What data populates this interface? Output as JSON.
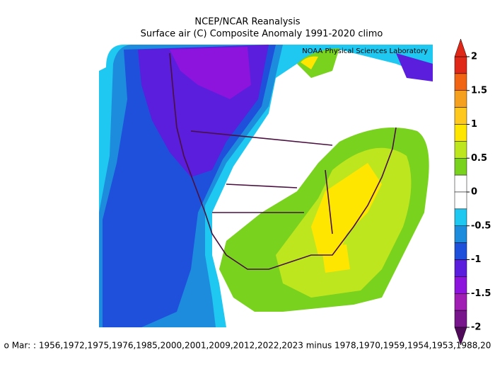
{
  "header": {
    "title": "NCEP/NCAR Reanalysis",
    "subtitle": "Surface air (C) Composite Anomaly 1991-2020 climo",
    "credit": "NOAA Physical Sciences Laboratory"
  },
  "footer": {
    "text": "o Mar: : 1956,1972,1975,1976,1985,2000,2001,2009,2012,2022,2023 minus 1978,1970,1959,1954,1953,1988,20"
  },
  "colorbar": {
    "ticks": [
      2,
      1.5,
      1,
      0.5,
      0,
      -0.5,
      -1,
      -1.5,
      -2
    ],
    "colors": [
      "#e02818",
      "#f06414",
      "#f5a01e",
      "#ffc81e",
      "#ffe600",
      "#bee61e",
      "#78d21e",
      "#ffffff",
      "#ffffff",
      "#1ec8f0",
      "#1e8cdc",
      "#1e50dc",
      "#5a1edc",
      "#8c14dc",
      "#a01eb4",
      "#78148c"
    ],
    "over_color": "#e02818",
    "under_color": "#500a5a"
  }
}
